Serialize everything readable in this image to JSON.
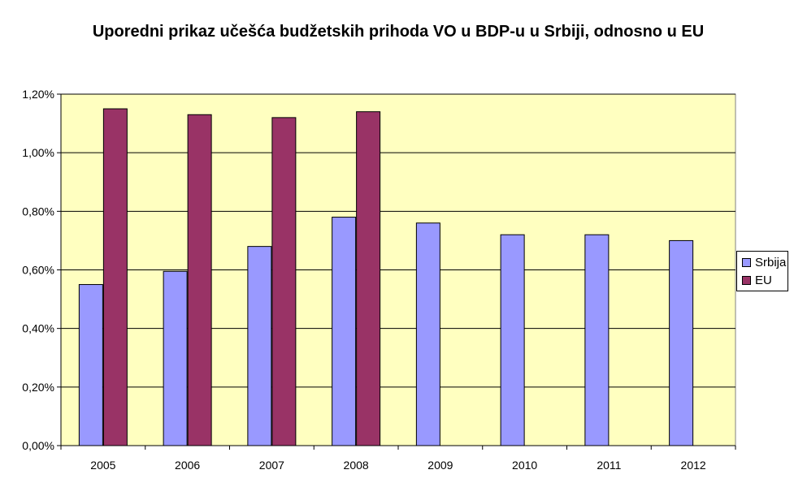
{
  "chart_data": {
    "type": "bar",
    "title": "Uporedni prikaz učešća budžetskih prihoda VO u BDP-u u Srbiji, odnosno u EU",
    "categories": [
      "2005",
      "2006",
      "2007",
      "2008",
      "2009",
      "2010",
      "2011",
      "2012"
    ],
    "series": [
      {
        "name": "Srbija",
        "values": [
          0.55,
          0.595,
          0.68,
          0.78,
          0.76,
          0.72,
          0.72,
          0.7
        ]
      },
      {
        "name": "EU",
        "values": [
          1.15,
          1.13,
          1.12,
          1.14,
          null,
          null,
          null,
          null
        ]
      }
    ],
    "y_ticks": [
      "0,00%",
      "0,20%",
      "0,40%",
      "0,60%",
      "0,80%",
      "1,00%",
      "1,20%"
    ],
    "ylim": [
      0,
      1.2
    ],
    "grid": true,
    "legend_position": "right",
    "colors": {
      "plot_background": "#ffffc0",
      "srbija": "#9999ff",
      "eu": "#993366",
      "gridline": "#000000"
    }
  }
}
